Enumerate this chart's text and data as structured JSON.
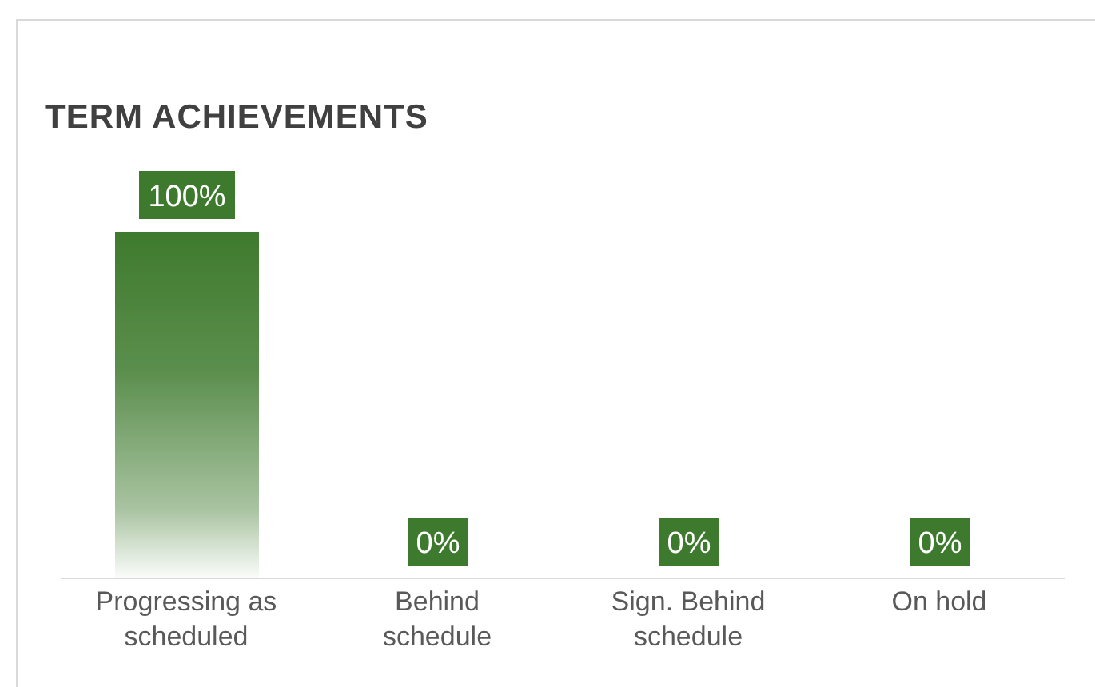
{
  "chart_data": {
    "type": "bar",
    "title": "TERM ACHIEVEMENTS",
    "categories": [
      "Progressing as scheduled",
      "Behind schedule",
      "Sign. Behind schedule",
      "On hold"
    ],
    "values": [
      100,
      0,
      0,
      0
    ],
    "color": "#3e7a2d",
    "value_labels": [
      "100%",
      "0%",
      "0%",
      "0%"
    ],
    "grid": false,
    "legend": false
  }
}
